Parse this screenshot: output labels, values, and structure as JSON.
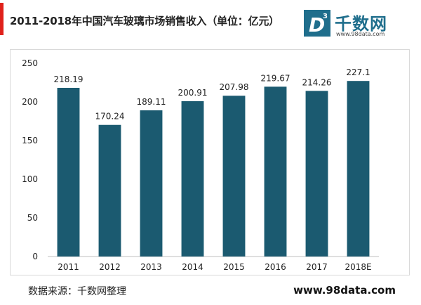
{
  "title": "2011-2018年中国汽车玻璃市场销售收入（单位：亿元）",
  "logo": {
    "name": "千数网",
    "url": "www.98data.com",
    "mark_letter": "D",
    "mark_superscript": "3"
  },
  "footer": {
    "source": "数据来源：千数网整理",
    "site": "www.98data.com"
  },
  "colors": {
    "bar": "#1b5a70",
    "accent": "#e0211b",
    "logo": "#1f6e8c"
  },
  "chart_data": {
    "type": "bar",
    "categories": [
      "2011",
      "2012",
      "2013",
      "2014",
      "2015",
      "2016",
      "2017",
      "2018E"
    ],
    "values": [
      218.19,
      170.24,
      189.11,
      200.91,
      207.98,
      219.67,
      214.26,
      227.1
    ],
    "value_labels": [
      "218.19",
      "170.24",
      "189.11",
      "200.91",
      "207.98",
      "219.67",
      "214.26",
      "227.1"
    ],
    "title": "2011-2018年中国汽车玻璃市场销售收入（单位：亿元）",
    "xlabel": "",
    "ylabel": "",
    "ylim": [
      0,
      250
    ],
    "yticks": [
      0,
      50,
      100,
      150,
      200,
      250
    ],
    "grid": false,
    "legend": "none"
  }
}
